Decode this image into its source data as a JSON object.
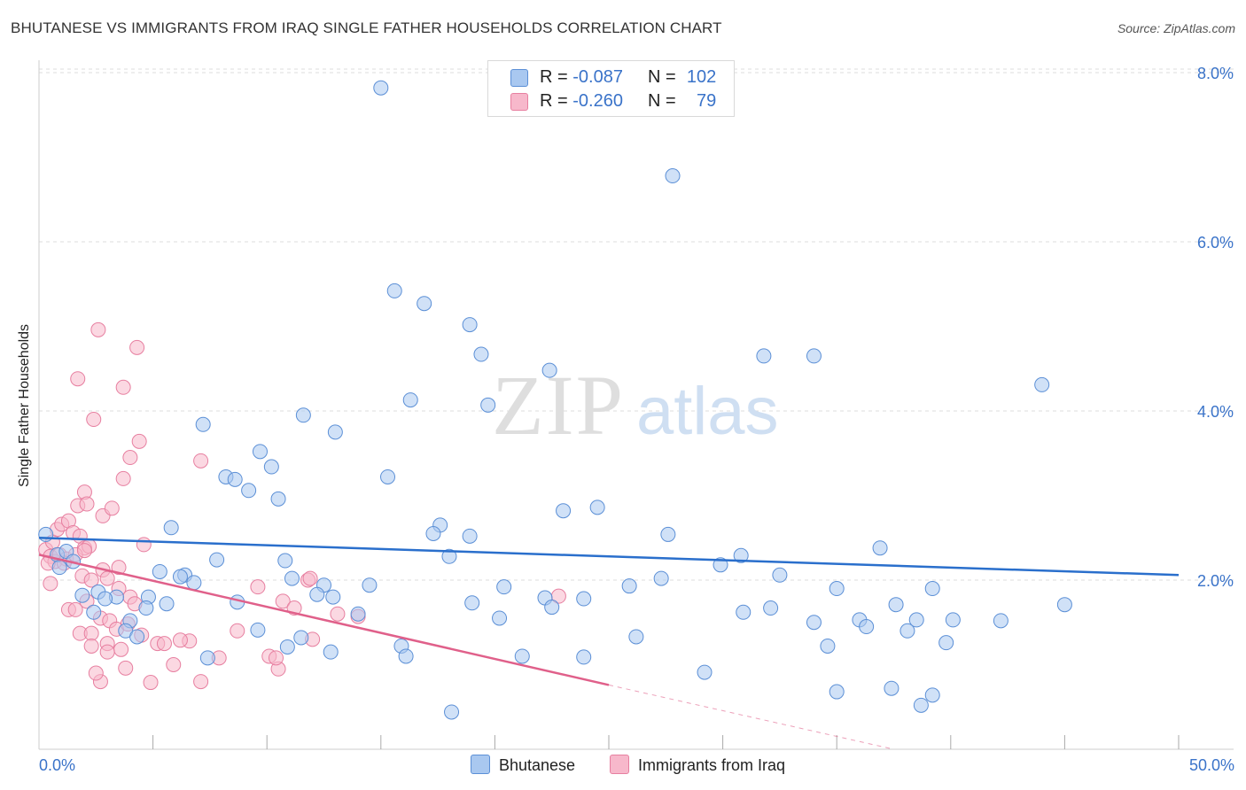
{
  "title": "BHUTANESE VS IMMIGRANTS FROM IRAQ SINGLE FATHER HOUSEHOLDS CORRELATION CHART",
  "source": "Source: ZipAtlas.com",
  "watermark": {
    "zip": "ZIP",
    "atlas": "atlas"
  },
  "legend": {
    "rows": [
      {
        "r_label": "R =",
        "r_value": "-0.087",
        "n_label": "N =",
        "n_value": "102"
      },
      {
        "r_label": "R =",
        "r_value": "-0.260",
        "n_label": "N =",
        "n_value": "79"
      }
    ]
  },
  "bottom_legend": {
    "series1": "Bhutanese",
    "series2": "Immigrants from Iraq"
  },
  "colors": {
    "blue_fill": "#a9c8f0",
    "blue_stroke": "#5b8fd6",
    "blue_line": "#2a6fcc",
    "pink_fill": "#f7b8cb",
    "pink_stroke": "#e77fa0",
    "pink_line": "#e0608a",
    "tick_label": "#3a73c9",
    "grid": "#dddddd"
  },
  "chart_data": {
    "type": "scatter",
    "title": "BHUTANESE VS IMMIGRANTS FROM IRAQ SINGLE FATHER HOUSEHOLDS CORRELATION CHART",
    "xlabel": "",
    "ylabel": "Single Father Households",
    "xlim": [
      0,
      50
    ],
    "ylim": [
      0,
      8.5
    ],
    "x_tick_labels": [
      "0.0%",
      "50.0%"
    ],
    "y_ticks": [
      2,
      4,
      6,
      8
    ],
    "y_tick_labels": [
      "2.0%",
      "4.0%",
      "6.0%",
      "8.0%"
    ],
    "grid": true,
    "legend_position": "top-center",
    "series": [
      {
        "name": "Bhutanese",
        "R": -0.087,
        "N": 102,
        "trend": {
          "x": [
            0,
            50
          ],
          "y": [
            2.5,
            2.06
          ]
        },
        "points": [
          [
            15.0,
            7.82
          ],
          [
            27.8,
            6.78
          ],
          [
            15.6,
            5.42
          ],
          [
            16.9,
            5.27
          ],
          [
            18.9,
            5.02
          ],
          [
            19.4,
            4.67
          ],
          [
            22.4,
            4.48
          ],
          [
            31.8,
            4.65
          ],
          [
            34.0,
            4.65
          ],
          [
            44.0,
            4.31
          ],
          [
            16.3,
            4.13
          ],
          [
            19.7,
            4.07
          ],
          [
            11.6,
            3.95
          ],
          [
            13.0,
            3.75
          ],
          [
            7.2,
            3.84
          ],
          [
            9.7,
            3.52
          ],
          [
            10.2,
            3.34
          ],
          [
            8.2,
            3.22
          ],
          [
            8.6,
            3.19
          ],
          [
            9.2,
            3.06
          ],
          [
            15.3,
            3.22
          ],
          [
            10.5,
            2.96
          ],
          [
            23.0,
            2.82
          ],
          [
            24.5,
            2.86
          ],
          [
            5.8,
            2.62
          ],
          [
            17.6,
            2.65
          ],
          [
            17.3,
            2.55
          ],
          [
            18.9,
            2.52
          ],
          [
            27.6,
            2.54
          ],
          [
            36.9,
            2.38
          ],
          [
            18.0,
            2.28
          ],
          [
            30.8,
            2.29
          ],
          [
            29.9,
            2.18
          ],
          [
            0.3,
            2.54
          ],
          [
            0.8,
            2.3
          ],
          [
            1.2,
            2.34
          ],
          [
            1.5,
            2.22
          ],
          [
            0.9,
            2.15
          ],
          [
            1.9,
            1.82
          ],
          [
            7.8,
            2.24
          ],
          [
            10.8,
            2.23
          ],
          [
            5.3,
            2.1
          ],
          [
            6.4,
            2.06
          ],
          [
            6.2,
            2.04
          ],
          [
            6.8,
            1.97
          ],
          [
            11.1,
            2.02
          ],
          [
            12.5,
            1.94
          ],
          [
            32.5,
            2.06
          ],
          [
            27.3,
            2.02
          ],
          [
            35.0,
            1.9
          ],
          [
            39.2,
            1.9
          ],
          [
            14.5,
            1.94
          ],
          [
            20.4,
            1.92
          ],
          [
            2.6,
            1.86
          ],
          [
            3.4,
            1.8
          ],
          [
            2.9,
            1.78
          ],
          [
            4.8,
            1.8
          ],
          [
            5.6,
            1.72
          ],
          [
            4.7,
            1.67
          ],
          [
            2.4,
            1.62
          ],
          [
            8.7,
            1.74
          ],
          [
            12.9,
            1.8
          ],
          [
            12.2,
            1.83
          ],
          [
            19.0,
            1.73
          ],
          [
            22.2,
            1.79
          ],
          [
            22.5,
            1.68
          ],
          [
            23.9,
            1.78
          ],
          [
            14.0,
            1.6
          ],
          [
            20.2,
            1.55
          ],
          [
            30.9,
            1.62
          ],
          [
            32.1,
            1.67
          ],
          [
            34.0,
            1.5
          ],
          [
            36.0,
            1.53
          ],
          [
            37.6,
            1.71
          ],
          [
            38.5,
            1.53
          ],
          [
            40.1,
            1.53
          ],
          [
            42.2,
            1.52
          ],
          [
            45.0,
            1.71
          ],
          [
            38.1,
            1.4
          ],
          [
            36.3,
            1.45
          ],
          [
            4.0,
            1.52
          ],
          [
            3.8,
            1.4
          ],
          [
            4.3,
            1.33
          ],
          [
            9.6,
            1.41
          ],
          [
            11.5,
            1.32
          ],
          [
            10.9,
            1.21
          ],
          [
            26.2,
            1.33
          ],
          [
            34.6,
            1.22
          ],
          [
            39.8,
            1.26
          ],
          [
            7.4,
            1.08
          ],
          [
            12.8,
            1.15
          ],
          [
            15.9,
            1.22
          ],
          [
            16.1,
            1.1
          ],
          [
            21.2,
            1.1
          ],
          [
            23.9,
            1.09
          ],
          [
            29.2,
            0.91
          ],
          [
            35.0,
            0.68
          ],
          [
            37.4,
            0.72
          ],
          [
            38.7,
            0.52
          ],
          [
            39.2,
            0.64
          ],
          [
            18.1,
            0.44
          ],
          [
            25.9,
            1.93
          ]
        ]
      },
      {
        "name": "Immigrants from Iraq",
        "R": -0.26,
        "N": 79,
        "trend": {
          "x": [
            0,
            25
          ],
          "y": [
            2.3,
            0.76
          ]
        },
        "trend_dashed": {
          "x": [
            25,
            37.5
          ],
          "y": [
            0.76,
            0.0
          ]
        },
        "points": [
          [
            2.6,
            4.96
          ],
          [
            4.3,
            4.75
          ],
          [
            1.7,
            4.38
          ],
          [
            3.7,
            4.28
          ],
          [
            2.4,
            3.9
          ],
          [
            4.4,
            3.64
          ],
          [
            7.1,
            3.41
          ],
          [
            4.0,
            3.45
          ],
          [
            3.7,
            3.2
          ],
          [
            2.0,
            3.04
          ],
          [
            0.3,
            2.36
          ],
          [
            0.5,
            2.28
          ],
          [
            0.7,
            2.22
          ],
          [
            0.4,
            2.2
          ],
          [
            0.9,
            2.3
          ],
          [
            1.2,
            2.25
          ],
          [
            0.6,
            2.45
          ],
          [
            0.8,
            2.6
          ],
          [
            1.0,
            2.66
          ],
          [
            1.3,
            2.7
          ],
          [
            1.5,
            2.56
          ],
          [
            1.8,
            2.52
          ],
          [
            2.0,
            2.38
          ],
          [
            2.2,
            2.4
          ],
          [
            1.7,
            2.88
          ],
          [
            2.1,
            2.9
          ],
          [
            2.8,
            2.76
          ],
          [
            1.6,
            2.3
          ],
          [
            1.1,
            2.2
          ],
          [
            0.5,
            1.96
          ],
          [
            1.9,
            2.05
          ],
          [
            2.3,
            2.0
          ],
          [
            2.8,
            2.12
          ],
          [
            3.5,
            2.15
          ],
          [
            4.6,
            2.42
          ],
          [
            3.0,
            2.02
          ],
          [
            3.5,
            1.9
          ],
          [
            4.0,
            1.8
          ],
          [
            4.2,
            1.72
          ],
          [
            1.3,
            1.65
          ],
          [
            1.6,
            1.65
          ],
          [
            2.1,
            1.75
          ],
          [
            2.7,
            1.55
          ],
          [
            3.1,
            1.52
          ],
          [
            3.4,
            1.42
          ],
          [
            3.9,
            1.48
          ],
          [
            4.5,
            1.35
          ],
          [
            1.8,
            1.37
          ],
          [
            2.3,
            1.37
          ],
          [
            3.0,
            1.25
          ],
          [
            3.6,
            1.18
          ],
          [
            2.3,
            1.22
          ],
          [
            5.2,
            1.25
          ],
          [
            5.5,
            1.25
          ],
          [
            6.6,
            1.28
          ],
          [
            5.9,
            1.0
          ],
          [
            7.1,
            0.8
          ],
          [
            4.9,
            0.79
          ],
          [
            2.7,
            0.8
          ],
          [
            2.5,
            0.9
          ],
          [
            3.0,
            1.15
          ],
          [
            3.8,
            0.96
          ],
          [
            9.6,
            1.92
          ],
          [
            10.7,
            1.75
          ],
          [
            11.2,
            1.67
          ],
          [
            11.8,
            2.0
          ],
          [
            11.9,
            2.02
          ],
          [
            13.1,
            1.6
          ],
          [
            12.0,
            1.3
          ],
          [
            10.1,
            1.1
          ],
          [
            10.5,
            0.95
          ],
          [
            10.4,
            1.08
          ],
          [
            22.8,
            1.81
          ],
          [
            14.0,
            1.57
          ],
          [
            8.7,
            1.4
          ],
          [
            7.9,
            1.08
          ],
          [
            6.2,
            1.29
          ],
          [
            3.2,
            2.85
          ],
          [
            2.0,
            2.35
          ]
        ]
      }
    ]
  }
}
